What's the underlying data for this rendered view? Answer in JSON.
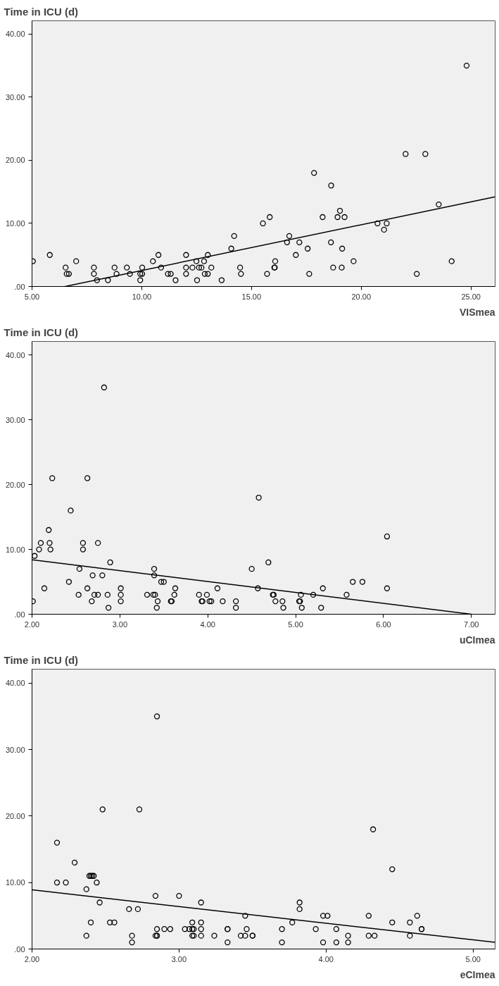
{
  "chart_data": [
    {
      "type": "scatter",
      "ylabel": "Time in ICU (d)",
      "xlabel": "VISmea",
      "xlim": [
        5,
        26.1
      ],
      "ylim": [
        0,
        42.1
      ],
      "xticks": [
        {
          "value": 5,
          "label": "5.00"
        },
        {
          "value": 10,
          "label": "10.00"
        },
        {
          "value": 15,
          "label": "15.00"
        },
        {
          "value": 20,
          "label": "20.00"
        },
        {
          "value": 25,
          "label": "25.00"
        }
      ],
      "yticks": [
        {
          "value": 0,
          "label": ".00"
        },
        {
          "value": 10,
          "label": "10.00"
        },
        {
          "value": 20,
          "label": "20.00"
        },
        {
          "value": 30,
          "label": "30.00"
        },
        {
          "value": 40,
          "label": "40.00"
        }
      ],
      "grid": false,
      "series": [
        {
          "marker": "circle",
          "color": "#000000",
          "x": [
            5.04,
            5.81,
            6.53,
            6.58,
            6.68,
            7.01,
            7.82,
            7.82,
            7.96,
            8.46,
            8.76,
            8.85,
            9.32,
            9.46,
            9.93,
            9.93,
            10.02,
            10.02,
            10.51,
            10.76,
            10.88,
            11.19,
            11.32,
            11.54,
            12.02,
            12.02,
            12.02,
            12.31,
            12.52,
            12.49,
            12.61,
            12.72,
            12.84,
            12.87,
            13.01,
            13.01,
            13.17,
            13.64,
            14.08,
            14.21,
            14.48,
            14.52,
            15.52,
            15.83,
            16.08,
            16.06,
            16.04,
            15.71,
            16.72,
            16.62,
            17.02,
            17.18,
            17.56,
            17.63,
            17.85,
            18.24,
            18.63,
            18.62,
            18.72,
            18.92,
            19.03,
            19.24,
            19.13,
            19.11,
            19.65,
            20.74,
            21.16,
            21.04,
            22.02,
            22.53,
            22.92,
            23.53,
            24.12,
            24.8
          ],
          "values": [
            4,
            5,
            3,
            2,
            2,
            4,
            3,
            2,
            1,
            1,
            3,
            2,
            3,
            2,
            1,
            2,
            2,
            3,
            4,
            5,
            3,
            2,
            2,
            1,
            5,
            3,
            2,
            3,
            1,
            4,
            3,
            3,
            4,
            2,
            2,
            5,
            3,
            1,
            6,
            8,
            3,
            2,
            10,
            11,
            4,
            3,
            3,
            2,
            8,
            7,
            5,
            7,
            6,
            2,
            18,
            11,
            16,
            7,
            3,
            11,
            12,
            11,
            6,
            3,
            4,
            10,
            10,
            9,
            21,
            2,
            21,
            13,
            4,
            35
          ]
        },
        {
          "type": "line",
          "color": "#000000",
          "x": [
            6.5,
            26.1
          ],
          "values": [
            0,
            14.2
          ]
        }
      ]
    },
    {
      "type": "scatter",
      "ylabel": "Time in ICU (d)",
      "xlabel": "uCImea",
      "xlim": [
        2,
        7.27
      ],
      "ylim": [
        0,
        42.1
      ],
      "xticks": [
        {
          "value": 2,
          "label": "2.00"
        },
        {
          "value": 3,
          "label": "3.00"
        },
        {
          "value": 4,
          "label": "4.00"
        },
        {
          "value": 5,
          "label": "5.00"
        },
        {
          "value": 6,
          "label": "6.00"
        },
        {
          "value": 7,
          "label": "7.00"
        }
      ],
      "yticks": [
        {
          "value": 0,
          "label": ".00"
        },
        {
          "value": 10,
          "label": "10.00"
        },
        {
          "value": 20,
          "label": "20.00"
        },
        {
          "value": 30,
          "label": "30.00"
        },
        {
          "value": 40,
          "label": "40.00"
        }
      ],
      "grid": false,
      "series": [
        {
          "marker": "circle",
          "color": "#000000",
          "x": [
            2.01,
            2.03,
            2.08,
            2.1,
            2.14,
            2.19,
            2.2,
            2.21,
            2.23,
            2.42,
            2.44,
            2.53,
            2.54,
            2.58,
            2.58,
            2.63,
            2.63,
            2.68,
            2.69,
            2.71,
            2.75,
            2.75,
            2.8,
            2.82,
            2.86,
            2.87,
            2.89,
            3.01,
            3.01,
            3.01,
            3.31,
            3.38,
            3.4,
            3.39,
            3.39,
            3.42,
            3.43,
            3.47,
            3.5,
            3.58,
            3.59,
            3.62,
            3.63,
            3.9,
            3.93,
            3.94,
            3.99,
            4.02,
            4.04,
            4.11,
            4.17,
            4.32,
            4.32,
            4.5,
            4.58,
            4.57,
            4.69,
            4.74,
            4.75,
            4.77,
            4.85,
            4.86,
            5.04,
            5.05,
            5.06,
            5.07,
            5.2,
            5.29,
            5.31,
            5.58,
            5.65,
            5.76,
            6.04,
            6.04
          ],
          "values": [
            2,
            9,
            10,
            11,
            4,
            13,
            11,
            10,
            21,
            5,
            16,
            3,
            7,
            11,
            10,
            21,
            4,
            2,
            6,
            3,
            3,
            11,
            6,
            35,
            3,
            1,
            8,
            4,
            3,
            2,
            3,
            3,
            3,
            7,
            6,
            1,
            2,
            5,
            5,
            2,
            2,
            3,
            4,
            3,
            2,
            2,
            3,
            2,
            2,
            4,
            2,
            2,
            1,
            7,
            18,
            4,
            8,
            3,
            3,
            2,
            2,
            1,
            2,
            2,
            3,
            1,
            3,
            1,
            4,
            3,
            5,
            5,
            12,
            4
          ]
        },
        {
          "type": "line",
          "color": "#000000",
          "x": [
            2,
            7
          ],
          "values": [
            8.4,
            0
          ]
        }
      ]
    },
    {
      "type": "scatter",
      "ylabel": "Time in ICU (d)",
      "xlabel": "eCImea",
      "xlim": [
        2,
        5.15
      ],
      "ylim": [
        0,
        42.1
      ],
      "xticks": [
        {
          "value": 2,
          "label": "2.00"
        },
        {
          "value": 3,
          "label": "3.00"
        },
        {
          "value": 4,
          "label": "4.00"
        },
        {
          "value": 5,
          "label": "5.00"
        }
      ],
      "yticks": [
        {
          "value": 0,
          "label": ".00"
        },
        {
          "value": 10,
          "label": "10.00"
        },
        {
          "value": 20,
          "label": "20.00"
        },
        {
          "value": 30,
          "label": "30.00"
        },
        {
          "value": 40,
          "label": "40.00"
        }
      ],
      "grid": false,
      "series": [
        {
          "marker": "circle",
          "color": "#000000",
          "x": [
            2.17,
            2.17,
            2.23,
            2.29,
            2.37,
            2.37,
            2.39,
            2.4,
            2.41,
            2.42,
            2.4,
            2.44,
            2.46,
            2.48,
            2.53,
            2.56,
            2.66,
            2.68,
            2.68,
            2.72,
            2.73,
            2.84,
            2.85,
            2.84,
            2.85,
            2.85,
            2.85,
            2.9,
            2.94,
            3.0,
            3.04,
            3.07,
            3.09,
            3.09,
            3.1,
            3.09,
            3.1,
            3.15,
            3.15,
            3.15,
            3.15,
            3.24,
            3.33,
            3.33,
            3.33,
            3.42,
            3.45,
            3.46,
            3.45,
            3.5,
            3.5,
            3.7,
            3.7,
            3.77,
            3.82,
            3.82,
            3.93,
            3.98,
            4.01,
            3.98,
            4.07,
            4.07,
            4.15,
            4.15,
            4.29,
            4.29,
            4.33,
            4.32,
            4.45,
            4.45,
            4.57,
            4.57,
            4.62,
            4.65,
            4.65
          ],
          "values": [
            16,
            10,
            10,
            13,
            9,
            2,
            11,
            11,
            11,
            11,
            4,
            10,
            7,
            21,
            4,
            4,
            6,
            2,
            1,
            6,
            21,
            8,
            35,
            2,
            2,
            2,
            3,
            3,
            3,
            8,
            3,
            3,
            4,
            3,
            3,
            2,
            2,
            7,
            4,
            3,
            2,
            2,
            3,
            3,
            1,
            2,
            5,
            3,
            2,
            2,
            2,
            3,
            1,
            4,
            7,
            6,
            3,
            5,
            5,
            1,
            3,
            1,
            2,
            1,
            5,
            2,
            2,
            18,
            12,
            4,
            4,
            2,
            5,
            3,
            3
          ]
        },
        {
          "type": "line",
          "color": "#000000",
          "x": [
            2,
            5.15
          ],
          "values": [
            8.9,
            1.0
          ]
        }
      ]
    }
  ]
}
